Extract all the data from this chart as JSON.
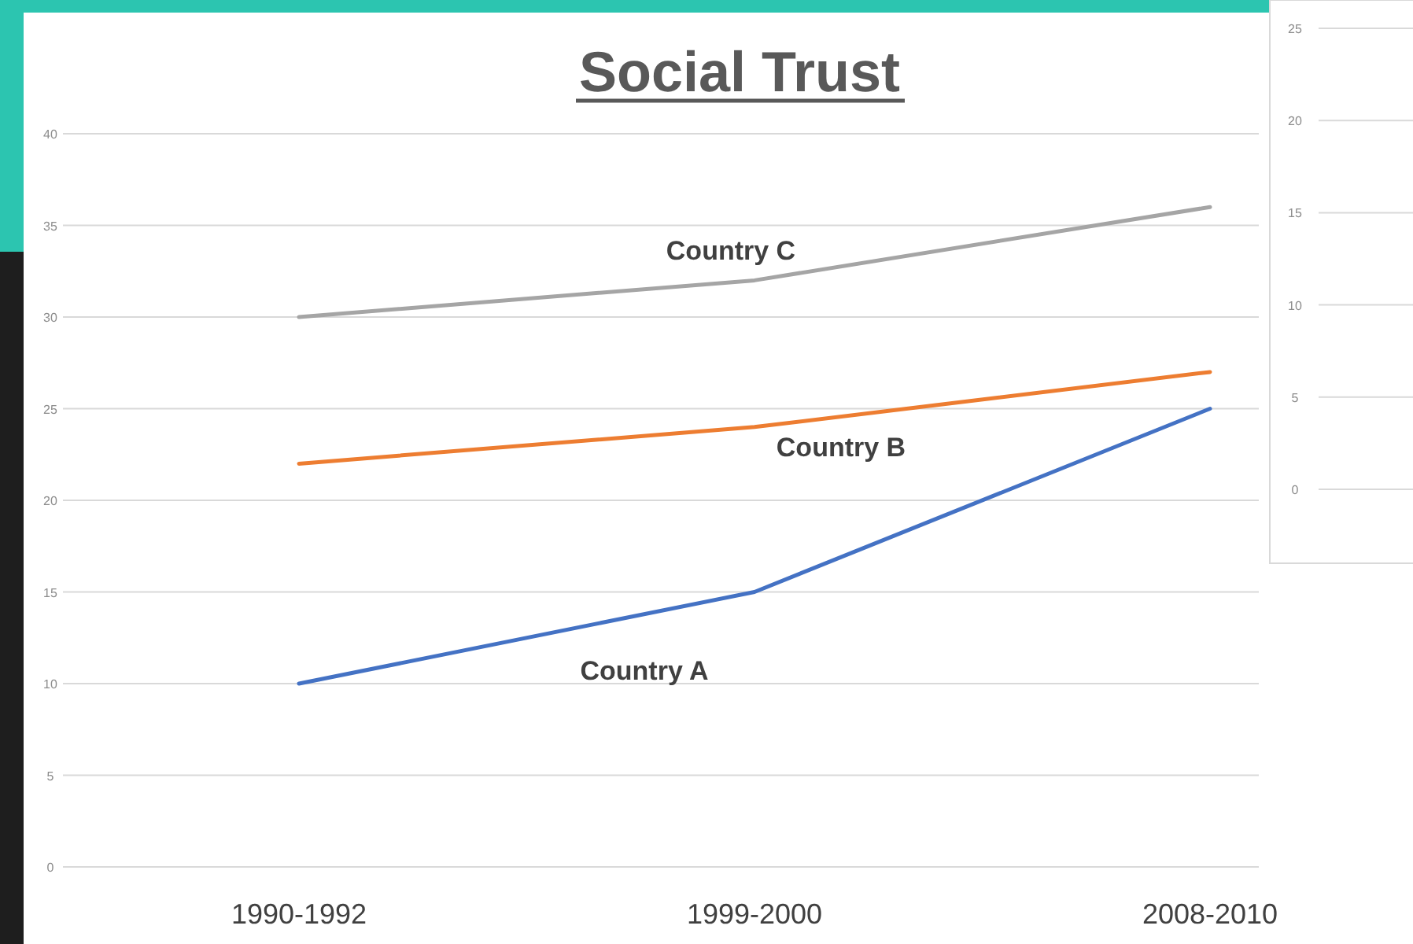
{
  "chart_data": [
    {
      "type": "line",
      "title": "Social Trust",
      "categories": [
        "1990-1992",
        "1999-2000",
        "2008-2010"
      ],
      "ylim": [
        0,
        40
      ],
      "yticks": [
        0,
        5,
        10,
        15,
        20,
        25,
        30,
        35,
        40
      ],
      "grid": "y",
      "legend": false,
      "series": [
        {
          "name": "Country A",
          "color": "#4472c4",
          "values": [
            10,
            15,
            25
          ]
        },
        {
          "name": "Country B",
          "color": "#ed7d31",
          "values": [
            22,
            24,
            27
          ]
        },
        {
          "name": "Country C",
          "color": "#a5a5a5",
          "values": [
            30,
            32,
            36
          ]
        }
      ]
    },
    {
      "type": "line",
      "categories": [
        null,
        null,
        null
      ],
      "ylim": [
        0,
        25
      ],
      "yticks": [
        0,
        5,
        10,
        15,
        20,
        25
      ],
      "grid": "y",
      "tick_labels": "y",
      "series": [
        {
          "color": "#a5a5a5",
          "values": [
            null,
            null,
            null
          ]
        }
      ]
    }
  ]
}
